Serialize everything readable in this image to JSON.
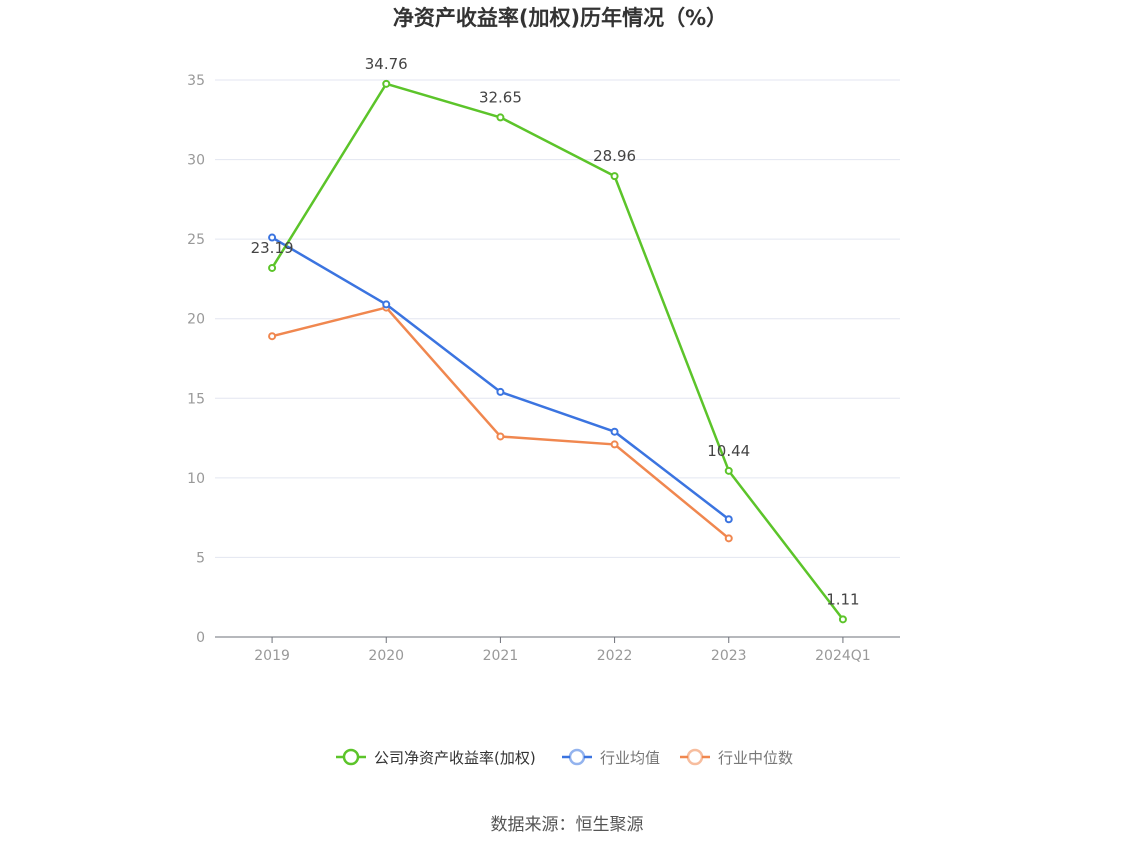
{
  "chart_data": {
    "type": "line",
    "title": "净资产收益率(加权)历年情况（%）",
    "categories": [
      "2019",
      "2020",
      "2021",
      "2022",
      "2023",
      "2024Q1"
    ],
    "ylim": [
      0,
      35
    ],
    "yticks": [
      0,
      5,
      10,
      15,
      20,
      25,
      30,
      35
    ],
    "grid": true,
    "legend_position": "bottom-center",
    "series": [
      {
        "name": "公司净资产收益率(加权)",
        "color": "#5cc42a",
        "values": [
          23.19,
          34.76,
          32.65,
          28.96,
          10.44,
          1.11
        ],
        "labels": [
          "23.19",
          "34.76",
          "32.65",
          "28.96",
          "10.44",
          "1.11"
        ]
      },
      {
        "name": "行业均值",
        "color": "#3b74e0",
        "values": [
          25.1,
          20.9,
          15.4,
          12.9,
          7.4,
          null
        ]
      },
      {
        "name": "行业中位数",
        "color": "#f0874f",
        "values": [
          18.9,
          20.7,
          12.6,
          12.1,
          6.2,
          null
        ]
      }
    ]
  },
  "legend_colors": [
    "#5cc42a",
    "#3b74e0",
    "#f0874f"
  ],
  "source": "数据来源：恒生聚源"
}
